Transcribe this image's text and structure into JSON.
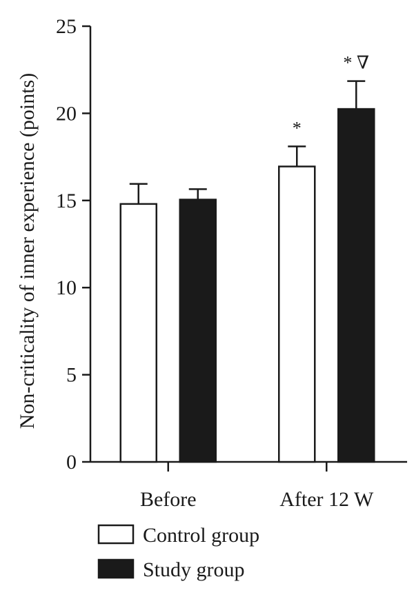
{
  "chart_data": {
    "type": "bar",
    "title": "",
    "xlabel": "",
    "ylabel": "Non-criticality of inner experience (points)",
    "ylim": [
      0,
      25
    ],
    "yticks": [
      0,
      5,
      10,
      15,
      20,
      25
    ],
    "categories": [
      "Before",
      "After 12 W"
    ],
    "series": [
      {
        "name": "Control group",
        "color": "#ffffff",
        "values": [
          14.8,
          16.95
        ],
        "errors": [
          1.15,
          1.15
        ],
        "annotations": [
          "",
          "*"
        ]
      },
      {
        "name": "Study group",
        "color": "#1a1a1a",
        "values": [
          15.05,
          20.25
        ],
        "errors": [
          0.6,
          1.6
        ],
        "annotations": [
          "",
          "* ∇"
        ]
      }
    ],
    "legend_position": "bottom-left",
    "grid": false
  }
}
